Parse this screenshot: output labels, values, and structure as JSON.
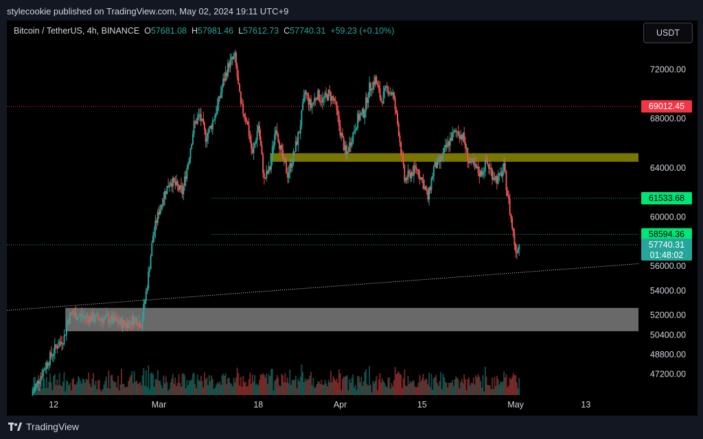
{
  "header": {
    "publisher_line": "stylecookie published on TradingView.com, May 02, 2024 19:11 UTC+9"
  },
  "symbol": {
    "name": "Bitcoin / TetherUS, 4h, BINANCE",
    "o_label": "O",
    "o": "57681.08",
    "h_label": "H",
    "h": "57981.46",
    "l_label": "L",
    "l": "57612.73",
    "c_label": "C",
    "c": "57740.31",
    "change": "+59.23 (+0.10%)"
  },
  "currency_button": "USDT",
  "footer": {
    "brand": "TradingView"
  },
  "colors": {
    "up": "#26a69a",
    "down": "#ef5350",
    "zone_yellow": "#7e7b00",
    "zone_grey": "#8c8c8c",
    "red_line": "#f23645",
    "green_line": "#22ab94"
  },
  "chart_data": {
    "type": "candlestick",
    "timeframe": "4h",
    "ylim": [
      45500,
      76000
    ],
    "y_ticks": [
      {
        "label": "72000.00",
        "value": 72000
      },
      {
        "label": "68000.00",
        "value": 68000
      },
      {
        "label": "64000.00",
        "value": 64000
      },
      {
        "label": "60000.00",
        "value": 60000
      },
      {
        "label": "56000.00",
        "value": 56000
      },
      {
        "label": "54000.00",
        "value": 54000
      },
      {
        "label": "52000.00",
        "value": 52000
      },
      {
        "label": "50400.00",
        "value": 50400
      },
      {
        "label": "48800.00",
        "value": 48800
      },
      {
        "label": "47200.00",
        "value": 47200
      }
    ],
    "x_ticks": [
      {
        "label": "12",
        "t": 0
      },
      {
        "label": "Mar",
        "t": 18
      },
      {
        "label": "18",
        "t": 35
      },
      {
        "label": "Apr",
        "t": 49
      },
      {
        "label": "15",
        "t": 63
      },
      {
        "label": "May",
        "t": 79
      },
      {
        "label": "13",
        "t": 91
      }
    ],
    "t_range": [
      -8,
      100
    ],
    "price_labels": [
      {
        "label": "69012.45",
        "value": 69012.45,
        "color": "#f23645"
      },
      {
        "label": "61533.68",
        "value": 61533.68,
        "color": "#00e676"
      },
      {
        "label": "58594.36",
        "value": 58594.36,
        "color": "#00e676"
      },
      {
        "label": "57740.31",
        "value": 57740.31,
        "color": "#26a69a",
        "countdown": "01:48:02"
      }
    ],
    "levels": [
      {
        "value": 69012.45,
        "t_start": -8,
        "color": "#f23645",
        "style": "dotted"
      },
      {
        "value": 61533.68,
        "t_start": 27,
        "color": "#22ab94",
        "style": "dotted"
      },
      {
        "value": 58594.36,
        "t_start": 27,
        "color": "#22ab94",
        "style": "dotted"
      },
      {
        "value": 57740.31,
        "t_start": -8,
        "color": "#26a69a",
        "style": "dotted"
      }
    ],
    "zones": [
      {
        "name": "resistance-zone",
        "t_start": 37,
        "t_end": 100,
        "y_low": 64500,
        "y_high": 65200,
        "color": "#7e7b00"
      },
      {
        "name": "support-zone",
        "t_start": 2,
        "t_end": 100,
        "y_low": 50700,
        "y_high": 52600,
        "color": "#8c8c8c"
      }
    ],
    "trendline": {
      "t1": -8,
      "y1": 52400,
      "t2": 100,
      "y2": 56200
    },
    "anchors": [
      {
        "t": -3.8,
        "p": 45500
      },
      {
        "t": -1.5,
        "p": 47800
      },
      {
        "t": 0.5,
        "p": 49500
      },
      {
        "t": 1.8,
        "p": 50200
      },
      {
        "t": 2.3,
        "p": 51500
      },
      {
        "t": 3,
        "p": 52100
      },
      {
        "t": 6,
        "p": 51800
      },
      {
        "t": 9,
        "p": 51700
      },
      {
        "t": 12,
        "p": 51300
      },
      {
        "t": 14,
        "p": 51700
      },
      {
        "t": 15,
        "p": 51300
      },
      {
        "t": 16,
        "p": 54500
      },
      {
        "t": 17,
        "p": 58500
      },
      {
        "t": 18,
        "p": 60500
      },
      {
        "t": 19,
        "p": 62000
      },
      {
        "t": 20,
        "p": 63000
      },
      {
        "t": 21,
        "p": 62500
      },
      {
        "t": 22,
        "p": 62000
      },
      {
        "t": 23,
        "p": 64500
      },
      {
        "t": 24,
        "p": 67500
      },
      {
        "t": 25,
        "p": 68300
      },
      {
        "t": 26,
        "p": 66500
      },
      {
        "t": 27,
        "p": 67500
      },
      {
        "t": 28,
        "p": 69000
      },
      {
        "t": 29,
        "p": 71000
      },
      {
        "t": 30,
        "p": 72500
      },
      {
        "t": 31,
        "p": 73000
      },
      {
        "t": 32,
        "p": 69000
      },
      {
        "t": 33,
        "p": 68000
      },
      {
        "t": 34,
        "p": 65000
      },
      {
        "t": 35,
        "p": 67500
      },
      {
        "t": 36,
        "p": 63000
      },
      {
        "t": 37,
        "p": 64000
      },
      {
        "t": 38,
        "p": 67500
      },
      {
        "t": 39,
        "p": 65000
      },
      {
        "t": 40,
        "p": 63500
      },
      {
        "t": 41,
        "p": 65000
      },
      {
        "t": 42,
        "p": 67000
      },
      {
        "t": 43,
        "p": 70200
      },
      {
        "t": 44,
        "p": 69000
      },
      {
        "t": 45,
        "p": 70000
      },
      {
        "t": 46,
        "p": 69500
      },
      {
        "t": 47,
        "p": 70000
      },
      {
        "t": 48,
        "p": 69500
      },
      {
        "t": 49,
        "p": 67000
      },
      {
        "t": 50,
        "p": 65000
      },
      {
        "t": 51,
        "p": 66500
      },
      {
        "t": 52,
        "p": 68000
      },
      {
        "t": 53,
        "p": 68500
      },
      {
        "t": 54,
        "p": 70500
      },
      {
        "t": 55,
        "p": 71200
      },
      {
        "t": 56,
        "p": 69500
      },
      {
        "t": 57,
        "p": 70500
      },
      {
        "t": 58,
        "p": 70000
      },
      {
        "t": 59,
        "p": 67000
      },
      {
        "t": 60,
        "p": 63000
      },
      {
        "t": 61,
        "p": 63500
      },
      {
        "t": 62,
        "p": 64000
      },
      {
        "t": 63,
        "p": 63000
      },
      {
        "t": 64,
        "p": 61500
      },
      {
        "t": 65,
        "p": 64000
      },
      {
        "t": 66,
        "p": 64500
      },
      {
        "t": 67,
        "p": 65500
      },
      {
        "t": 68,
        "p": 66500
      },
      {
        "t": 69,
        "p": 67000
      },
      {
        "t": 70,
        "p": 66500
      },
      {
        "t": 71,
        "p": 64500
      },
      {
        "t": 72,
        "p": 64000
      },
      {
        "t": 73,
        "p": 63500
      },
      {
        "t": 74,
        "p": 64500
      },
      {
        "t": 75,
        "p": 63500
      },
      {
        "t": 76,
        "p": 63000
      },
      {
        "t": 77,
        "p": 64000
      },
      {
        "t": 78,
        "p": 60500
      },
      {
        "t": 79,
        "p": 57300
      },
      {
        "t": 79.6,
        "p": 57740
      }
    ]
  }
}
